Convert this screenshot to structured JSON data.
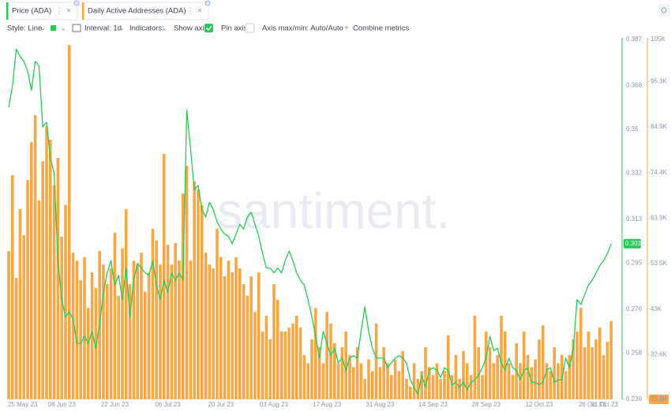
{
  "tabs": [
    "Price (ADA)",
    "Daily Active Addresses (ADA)"
  ],
  "toolbar": {
    "style": "Style: Line",
    "interval": "Interval: 1d",
    "indicators": "Indicators:",
    "show_axis": "Show axis",
    "pin_axis": "Pin axis",
    "axis_range": "Axis max/min: Auto/Auto",
    "combine": "Combine metrics"
  },
  "watermark": "santiment.",
  "chart_data": {
    "type": "bar",
    "categories": [
      "25 May 23",
      null,
      null,
      null,
      null,
      null,
      null,
      null,
      null,
      null,
      null,
      null,
      null,
      null,
      "08 Jun 23",
      null,
      null,
      null,
      null,
      null,
      null,
      null,
      null,
      null,
      null,
      null,
      null,
      null,
      "22 Jun 23",
      null,
      null,
      null,
      null,
      null,
      null,
      null,
      null,
      null,
      null,
      null,
      null,
      null,
      "06 Jul 23",
      null,
      null,
      null,
      null,
      null,
      null,
      null,
      null,
      null,
      null,
      null,
      null,
      null,
      "20 Jul 23",
      null,
      null,
      null,
      null,
      null,
      null,
      null,
      null,
      null,
      null,
      null,
      null,
      null,
      "03 Aug 23",
      null,
      null,
      null,
      null,
      null,
      null,
      null,
      null,
      null,
      null,
      null,
      null,
      null,
      "17 Aug 23",
      null,
      null,
      null,
      null,
      null,
      null,
      null,
      null,
      null,
      null,
      null,
      null,
      null,
      "31 Aug 23",
      null,
      null,
      null,
      null,
      null,
      null,
      null,
      null,
      null,
      null,
      null,
      null,
      null,
      "14 Sep 23",
      null,
      null,
      null,
      null,
      null,
      null,
      null,
      null,
      null,
      null,
      null,
      null,
      null,
      "28 Sep 23",
      null,
      null,
      null,
      null,
      null,
      null,
      null,
      null,
      null,
      null,
      null,
      null,
      null,
      "12 Oct 23",
      null,
      null,
      null,
      null,
      null,
      null,
      null,
      null,
      null,
      null,
      null,
      null,
      null,
      "26 Oct 23",
      null,
      null,
      null,
      null,
      "31 Oct 23"
    ],
    "series": [
      {
        "name": "Price (ADA)",
        "type": "line",
        "color": "#26c953",
        "values": [
          0.359,
          0.368,
          0.383,
          0.38,
          0.378,
          0.374,
          0.366,
          0.378,
          0.376,
          0.351,
          0.353,
          0.338,
          0.332,
          0.296,
          0.28,
          0.273,
          0.275,
          0.272,
          0.262,
          0.262,
          0.265,
          0.262,
          0.267,
          0.26,
          0.27,
          0.283,
          0.291,
          0.296,
          0.286,
          0.29,
          0.28,
          0.293,
          0.273,
          0.288,
          0.295,
          0.293,
          0.291,
          0.29,
          0.296,
          0.286,
          0.28,
          0.288,
          0.283,
          0.291,
          0.288,
          0.291,
          0.288,
          0.358,
          0.342,
          0.325,
          0.327,
          0.317,
          0.314,
          0.32,
          0.317,
          0.312,
          0.309,
          0.307,
          0.306,
          0.303,
          0.307,
          0.311,
          0.309,
          0.314,
          0.316,
          0.311,
          0.306,
          0.299,
          0.293,
          0.293,
          0.291,
          0.293,
          0.291,
          0.296,
          0.3,
          0.296,
          0.291,
          0.288,
          0.286,
          0.28,
          0.273,
          0.265,
          0.256,
          0.267,
          0.262,
          0.257,
          0.26,
          0.254,
          0.256,
          0.251,
          0.256,
          0.257,
          0.256,
          0.267,
          0.277,
          0.267,
          0.26,
          0.256,
          0.256,
          0.256,
          0.252,
          0.254,
          0.256,
          0.257,
          0.256,
          0.254,
          0.247,
          0.244,
          0.241,
          0.249,
          0.244,
          0.251,
          0.252,
          0.251,
          0.248,
          0.252,
          0.251,
          0.245,
          0.246,
          0.244,
          0.246,
          0.243,
          0.246,
          0.247,
          0.249,
          0.252,
          0.256,
          0.265,
          0.259,
          0.26,
          0.254,
          0.251,
          0.256,
          0.252,
          0.251,
          0.247,
          0.251,
          0.252,
          0.246,
          0.246,
          0.245,
          0.246,
          0.251,
          0.252,
          0.246,
          0.247,
          0.247,
          0.256,
          0.252,
          0.26,
          0.28,
          0.278,
          0.282,
          0.286,
          0.288,
          0.291,
          0.294,
          0.296,
          0.299,
          0.303
        ]
      },
      {
        "name": "Daily Active Addresses (ADA)",
        "type": "bar",
        "axis": "y2",
        "color": "#f7a846",
        "values": [
          56400,
          73800,
          50200,
          66000,
          60000,
          72700,
          81400,
          87600,
          68000,
          77000,
          85000,
          82000,
          71500,
          77800,
          59700,
          67000,
          103700,
          56000,
          54200,
          49700,
          55000,
          43300,
          51500,
          47900,
          56400,
          53300,
          48800,
          52400,
          60600,
          46100,
          57000,
          66000,
          48800,
          54200,
          53300,
          56000,
          47000,
          51500,
          61500,
          58800,
          53300,
          78700,
          57800,
          53300,
          58200,
          54200,
          69600,
          76000,
          54200,
          72400,
          70500,
          67000,
          56000,
          53300,
          52400,
          61500,
          55000,
          50600,
          54200,
          51500,
          55000,
          52400,
          48800,
          46100,
          50600,
          42400,
          51500,
          37900,
          41500,
          36100,
          48800,
          45200,
          37900,
          37900,
          38800,
          39700,
          41500,
          38800,
          32500,
          30600,
          36100,
          43300,
          34300,
          30600,
          42400,
          39700,
          35200,
          30600,
          34300,
          37900,
          32500,
          29700,
          34300,
          30600,
          27000,
          31500,
          28800,
          39700,
          29700,
          34300,
          30600,
          27900,
          31500,
          28800,
          33400,
          27000,
          25200,
          30600,
          27000,
          28800,
          34300,
          29700,
          27900,
          30600,
          27000,
          28800,
          37000,
          27900,
          32500,
          27000,
          33400,
          30600,
          27900,
          41500,
          34300,
          27900,
          37900,
          34300,
          30600,
          32500,
          41500,
          37900,
          30600,
          27900,
          35200,
          30600,
          37900,
          32500,
          29700,
          31500,
          36100,
          39300,
          30600,
          28800,
          34300,
          30600,
          32500,
          28800,
          32500,
          36100,
          37900,
          43300,
          34300,
          37900,
          34300,
          36100,
          38800,
          32500,
          35500,
          40300
        ]
      }
    ],
    "ylim": [
      0.239,
      0.387
    ],
    "yticks": [
      0.387,
      0.368,
      0.35,
      0.332,
      0.313,
      0.295,
      0.276,
      0.258,
      0.239
    ],
    "y2lim": [
      22300,
      105000
    ],
    "y2ticks": [
      {
        "value": 105000,
        "label": "105K"
      },
      {
        "value": 95300,
        "label": "95.3K"
      },
      {
        "value": 84900,
        "label": "84.9K"
      },
      {
        "value": 74400,
        "label": "74.4K"
      },
      {
        "value": 63900,
        "label": "63.9K"
      },
      {
        "value": 53500,
        "label": "53.5K"
      },
      {
        "value": 43000,
        "label": "43K"
      },
      {
        "value": 32600,
        "label": "32.6K"
      },
      {
        "value": 22300,
        "label": "22.3K"
      }
    ],
    "grid": false
  }
}
